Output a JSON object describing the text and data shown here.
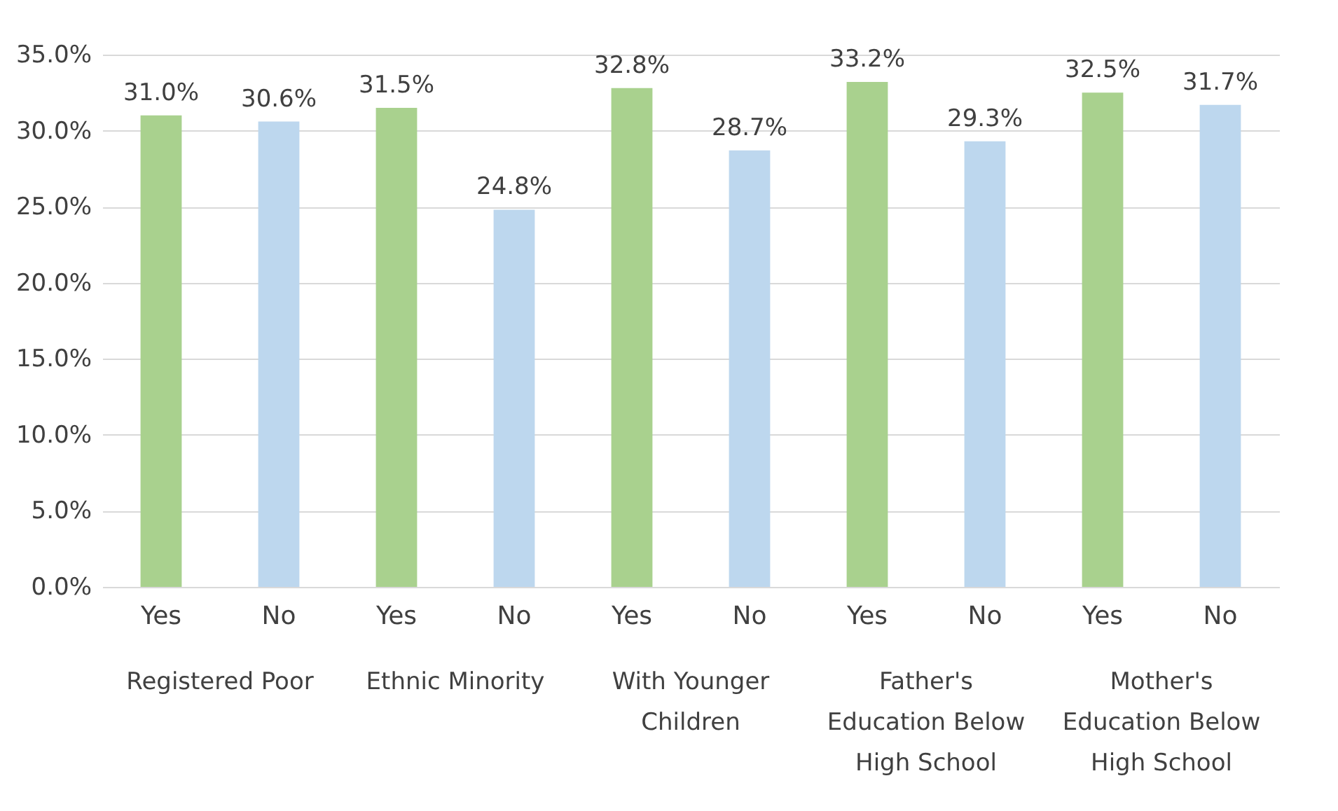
{
  "chart_data": {
    "type": "bar",
    "categories": [
      "Yes",
      "No",
      "Yes",
      "No",
      "Yes",
      "No",
      "Yes",
      "No",
      "Yes",
      "No"
    ],
    "values": [
      31.0,
      30.6,
      31.5,
      24.8,
      32.8,
      28.7,
      33.2,
      29.3,
      32.5,
      31.7
    ],
    "colors": [
      "#a9d18e",
      "#bdd7ee",
      "#a9d18e",
      "#bdd7ee",
      "#a9d18e",
      "#bdd7ee",
      "#a9d18e",
      "#bdd7ee",
      "#a9d18e",
      "#bdd7ee"
    ],
    "value_labels": [
      "31.0%",
      "30.6%",
      "31.5%",
      "24.8%",
      "32.8%",
      "28.7%",
      "33.2%",
      "29.3%",
      "32.5%",
      "31.7%"
    ],
    "ylim": [
      0,
      35
    ],
    "yticks": [
      {
        "value": 0,
        "label": "0.0%"
      },
      {
        "value": 5,
        "label": "5.0%"
      },
      {
        "value": 10,
        "label": "10.0%"
      },
      {
        "value": 15,
        "label": "15.0%"
      },
      {
        "value": 20,
        "label": "20.0%"
      },
      {
        "value": 25,
        "label": "25.0%"
      },
      {
        "value": 30,
        "label": "30.0%"
      },
      {
        "value": 35,
        "label": "35.0%"
      }
    ],
    "annotations": [
      "Registered Poor",
      "Ethnic Minority",
      "With Younger Children",
      "Father's Education Below High School",
      "Mother's Education Below High School"
    ],
    "grid": "y"
  }
}
